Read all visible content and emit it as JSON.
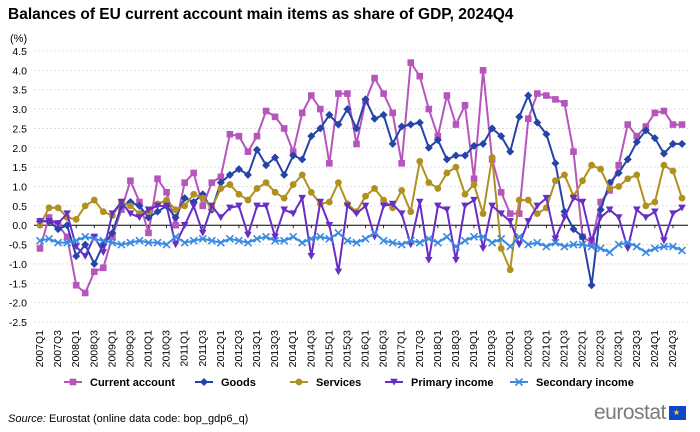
{
  "title": "Balances of EU current account main items as share of GDP, 2024Q4",
  "source": {
    "label": "Source:",
    "text": " Eurostat (online data code: bop_gdp6_q)"
  },
  "logo": {
    "text": "eurostat"
  },
  "colors": {
    "current_account": "#b656bd",
    "goods": "#2644a7",
    "services": "#b09120",
    "primary_income": "#672dc4",
    "secondary_income": "#388ae2"
  },
  "chart_data": {
    "type": "line",
    "unit_label": "(%)",
    "ylim": [
      -2.5,
      4.5
    ],
    "yticks": [
      "4.5",
      "4.0",
      "3.5",
      "3.0",
      "2.5",
      "2.0",
      "1.5",
      "1.0",
      "0.5",
      "0.0",
      "-0.5",
      "-1.0",
      "-1.5",
      "-2.0",
      "-2.5"
    ],
    "grid": true,
    "legend_position": "bottom",
    "x": [
      "2007Q1",
      "2007Q2",
      "2007Q3",
      "2007Q4",
      "2008Q1",
      "2008Q2",
      "2008Q3",
      "2008Q4",
      "2009Q1",
      "2009Q2",
      "2009Q3",
      "2009Q4",
      "2010Q1",
      "2010Q2",
      "2010Q3",
      "2010Q4",
      "2011Q1",
      "2011Q2",
      "2011Q3",
      "2011Q4",
      "2012Q1",
      "2012Q2",
      "2012Q3",
      "2012Q4",
      "2013Q1",
      "2013Q2",
      "2013Q3",
      "2013Q4",
      "2014Q1",
      "2014Q2",
      "2014Q3",
      "2014Q4",
      "2015Q1",
      "2015Q2",
      "2015Q3",
      "2015Q4",
      "2016Q1",
      "2016Q2",
      "2016Q3",
      "2016Q4",
      "2017Q1",
      "2017Q2",
      "2017Q3",
      "2017Q4",
      "2018Q1",
      "2018Q2",
      "2018Q3",
      "2018Q4",
      "2019Q1",
      "2019Q2",
      "2019Q3",
      "2019Q4",
      "2020Q1",
      "2020Q2",
      "2020Q3",
      "2020Q4",
      "2021Q1",
      "2021Q2",
      "2021Q3",
      "2021Q4",
      "2022Q1",
      "2022Q2",
      "2022Q3",
      "2022Q4",
      "2023Q1",
      "2023Q2",
      "2023Q3",
      "2023Q4",
      "2024Q1",
      "2024Q2",
      "2024Q3",
      "2024Q4"
    ],
    "x_tick_labels": [
      "2007Q1",
      "2007Q3",
      "2008Q1",
      "2008Q3",
      "2009Q1",
      "2009Q3",
      "2010Q1",
      "2010Q3",
      "2011Q1",
      "2011Q3",
      "2012Q1",
      "2012Q3",
      "2013Q1",
      "2013Q3",
      "2014Q1",
      "2014Q3",
      "2015Q1",
      "2015Q3",
      "2016Q1",
      "2016Q3",
      "2017Q1",
      "2017Q3",
      "2018Q1",
      "2018Q3",
      "2019Q1",
      "2019Q3",
      "2020Q1",
      "2020Q3",
      "2021Q1",
      "2021Q3",
      "2022Q1",
      "2022Q3",
      "2023Q1",
      "2023Q3",
      "2024Q1",
      "2024Q3"
    ],
    "series": [
      {
        "name": "Current account",
        "color_key": "current_account",
        "marker": "square",
        "values": [
          -0.6,
          0.2,
          0.0,
          -0.3,
          -1.55,
          -1.75,
          -1.2,
          -1.1,
          -0.3,
          0.4,
          1.15,
          0.6,
          -0.2,
          1.2,
          0.85,
          0.0,
          1.1,
          1.35,
          0.5,
          1.1,
          1.25,
          2.35,
          2.3,
          1.9,
          2.3,
          2.95,
          2.8,
          2.5,
          1.9,
          2.9,
          3.35,
          3.0,
          1.6,
          3.4,
          3.4,
          2.1,
          3.2,
          3.8,
          3.4,
          2.9,
          1.6,
          4.2,
          3.85,
          3.0,
          2.3,
          3.35,
          2.6,
          3.1,
          1.2,
          4.0,
          1.7,
          0.85,
          0.3,
          0.3,
          2.75,
          3.4,
          3.35,
          3.25,
          3.15,
          1.9,
          -0.3,
          -0.45,
          0.6,
          0.9,
          1.55,
          2.6,
          2.3,
          2.55,
          2.9,
          2.95,
          2.6,
          2.6
        ]
      },
      {
        "name": "Goods",
        "color_key": "goods",
        "marker": "diamond",
        "values": [
          0.1,
          0.1,
          -0.1,
          0.0,
          -0.8,
          -0.5,
          -1.0,
          -0.5,
          -0.2,
          0.5,
          0.6,
          0.5,
          0.2,
          0.35,
          0.5,
          0.2,
          0.7,
          0.6,
          0.8,
          0.4,
          1.1,
          1.3,
          1.45,
          1.3,
          1.95,
          1.55,
          1.75,
          1.3,
          1.8,
          1.7,
          2.3,
          2.5,
          2.85,
          2.6,
          3.0,
          2.5,
          3.25,
          2.75,
          2.85,
          2.1,
          2.55,
          2.6,
          2.65,
          2.0,
          2.2,
          1.7,
          1.8,
          1.8,
          2.05,
          2.1,
          2.5,
          2.3,
          1.9,
          2.8,
          3.35,
          2.65,
          2.35,
          1.6,
          0.35,
          -0.1,
          -0.3,
          -1.55,
          0.4,
          1.1,
          1.35,
          1.7,
          2.15,
          2.45,
          2.25,
          1.85,
          2.1,
          2.1
        ]
      },
      {
        "name": "Services",
        "color_key": "services",
        "marker": "circle",
        "values": [
          0.0,
          0.45,
          0.45,
          0.2,
          0.15,
          0.5,
          0.65,
          0.35,
          0.25,
          0.6,
          0.5,
          0.3,
          0.35,
          0.55,
          0.65,
          0.4,
          0.5,
          0.8,
          0.7,
          0.45,
          0.95,
          1.05,
          0.8,
          0.65,
          0.95,
          1.1,
          0.85,
          0.7,
          1.05,
          1.3,
          0.85,
          0.55,
          0.6,
          1.1,
          0.55,
          0.35,
          0.75,
          0.95,
          0.65,
          0.45,
          0.9,
          0.35,
          1.65,
          1.1,
          0.95,
          1.35,
          1.5,
          0.8,
          1.05,
          0.3,
          1.75,
          -0.6,
          -1.15,
          0.65,
          0.65,
          0.3,
          0.45,
          1.15,
          1.3,
          0.75,
          1.15,
          1.55,
          1.45,
          0.95,
          1.0,
          1.2,
          1.3,
          0.5,
          0.6,
          1.55,
          1.4,
          0.7
        ]
      },
      {
        "name": "Primary income",
        "color_key": "primary_income",
        "marker": "triangle",
        "values": [
          0.1,
          0.1,
          0.05,
          0.3,
          -0.55,
          -0.8,
          -0.3,
          -0.7,
          0.3,
          0.6,
          0.3,
          0.2,
          0.4,
          0.5,
          0.5,
          -0.5,
          0.0,
          0.5,
          -0.2,
          0.5,
          0.2,
          0.45,
          0.5,
          -0.25,
          0.5,
          0.5,
          -0.3,
          0.4,
          0.3,
          0.7,
          -0.8,
          0.6,
          0.0,
          -1.2,
          0.5,
          0.3,
          0.5,
          -0.3,
          0.5,
          0.55,
          0.3,
          -0.5,
          0.6,
          -0.9,
          0.5,
          0.4,
          -0.9,
          0.5,
          0.65,
          -0.6,
          0.5,
          0.3,
          0.1,
          -0.5,
          0.1,
          0.5,
          0.7,
          -0.35,
          0.2,
          0.7,
          0.6,
          -0.4,
          0.2,
          0.4,
          0.2,
          -0.6,
          0.4,
          0.2,
          0.35,
          -0.4,
          0.3,
          0.45
        ]
      },
      {
        "name": "Secondary income",
        "color_key": "secondary_income",
        "marker": "x",
        "values": [
          -0.4,
          -0.35,
          -0.45,
          -0.45,
          -0.4,
          -0.3,
          -0.35,
          -0.4,
          -0.45,
          -0.5,
          -0.45,
          -0.4,
          -0.45,
          -0.45,
          -0.5,
          -0.3,
          -0.45,
          -0.4,
          -0.35,
          -0.4,
          -0.45,
          -0.35,
          -0.4,
          -0.45,
          -0.35,
          -0.3,
          -0.4,
          -0.4,
          -0.3,
          -0.45,
          -0.35,
          -0.3,
          -0.35,
          -0.2,
          -0.4,
          -0.45,
          -0.35,
          -0.2,
          -0.4,
          -0.45,
          -0.5,
          -0.4,
          -0.45,
          -0.35,
          -0.45,
          -0.3,
          -0.55,
          -0.4,
          -0.3,
          -0.3,
          -0.45,
          -0.35,
          -0.55,
          -0.3,
          -0.5,
          -0.45,
          -0.55,
          -0.45,
          -0.55,
          -0.5,
          -0.5,
          -0.55,
          -0.6,
          -0.7,
          -0.5,
          -0.45,
          -0.55,
          -0.7,
          -0.6,
          -0.55,
          -0.55,
          -0.65
        ]
      }
    ]
  }
}
